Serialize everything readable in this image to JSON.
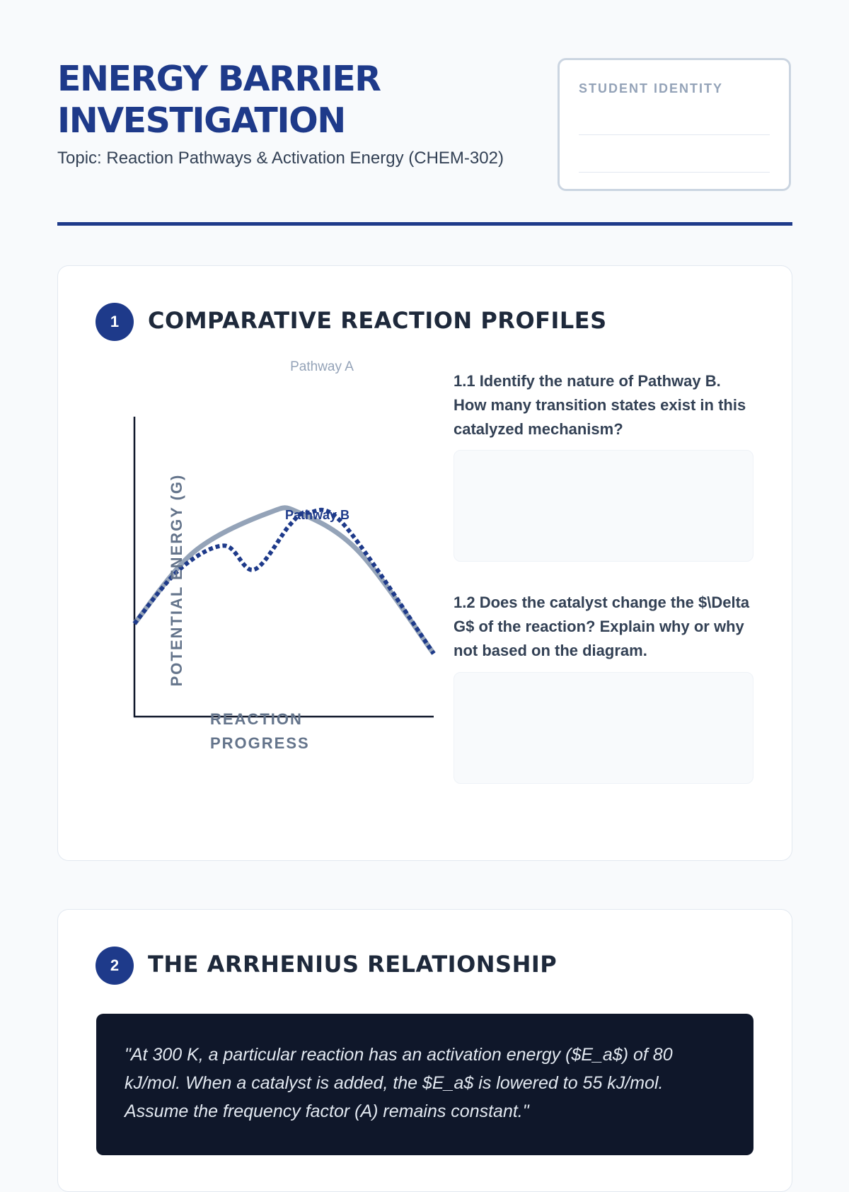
{
  "header": {
    "title": "ENERGY BARRIER INVESTIGATION",
    "subtitle": "Topic: Reaction Pathways & Activation Energy (CHEM-302)",
    "identity_label": "STUDENT IDENTITY"
  },
  "section1": {
    "number": "1",
    "title": "COMPARATIVE REACTION PROFILES",
    "q1": "1.1 Identify the nature of Pathway B. How many transition states exist in this catalyzed mechanism?",
    "q2": "1.2 Does the catalyst change the $\\Delta G$ of the reaction? Explain why or why not based on the diagram."
  },
  "section2": {
    "number": "2",
    "title": "THE ARRHENIUS RELATIONSHIP",
    "quote": "\"At 300 K, a particular reaction has an activation energy ($E_a$) of 80 kJ/mol. When a catalyst is added, the $E_a$ is lowered to 55 kJ/mol. Assume the frequency factor (A) remains constant.\""
  },
  "chart_data": {
    "type": "line",
    "xlabel": "REACTION PROGRESS",
    "ylabel": "POTENTIAL ENERGY (G)",
    "xlim": [
      0,
      100
    ],
    "ylim": [
      0,
      100
    ],
    "grid": false,
    "series": [
      {
        "name": "Pathway A",
        "color": "#94a3b8",
        "style": "solid",
        "x": [
          0,
          20,
          45,
          55,
          75,
          100
        ],
        "y": [
          31,
          55,
          68,
          68,
          55,
          21
        ]
      },
      {
        "name": "Pathway B",
        "color": "#1e3a8a",
        "style": "dashed",
        "x": [
          0,
          15,
          30,
          40,
          52,
          58,
          70,
          100
        ],
        "y": [
          31,
          49,
          57,
          49,
          64,
          68,
          64,
          21
        ]
      }
    ]
  }
}
